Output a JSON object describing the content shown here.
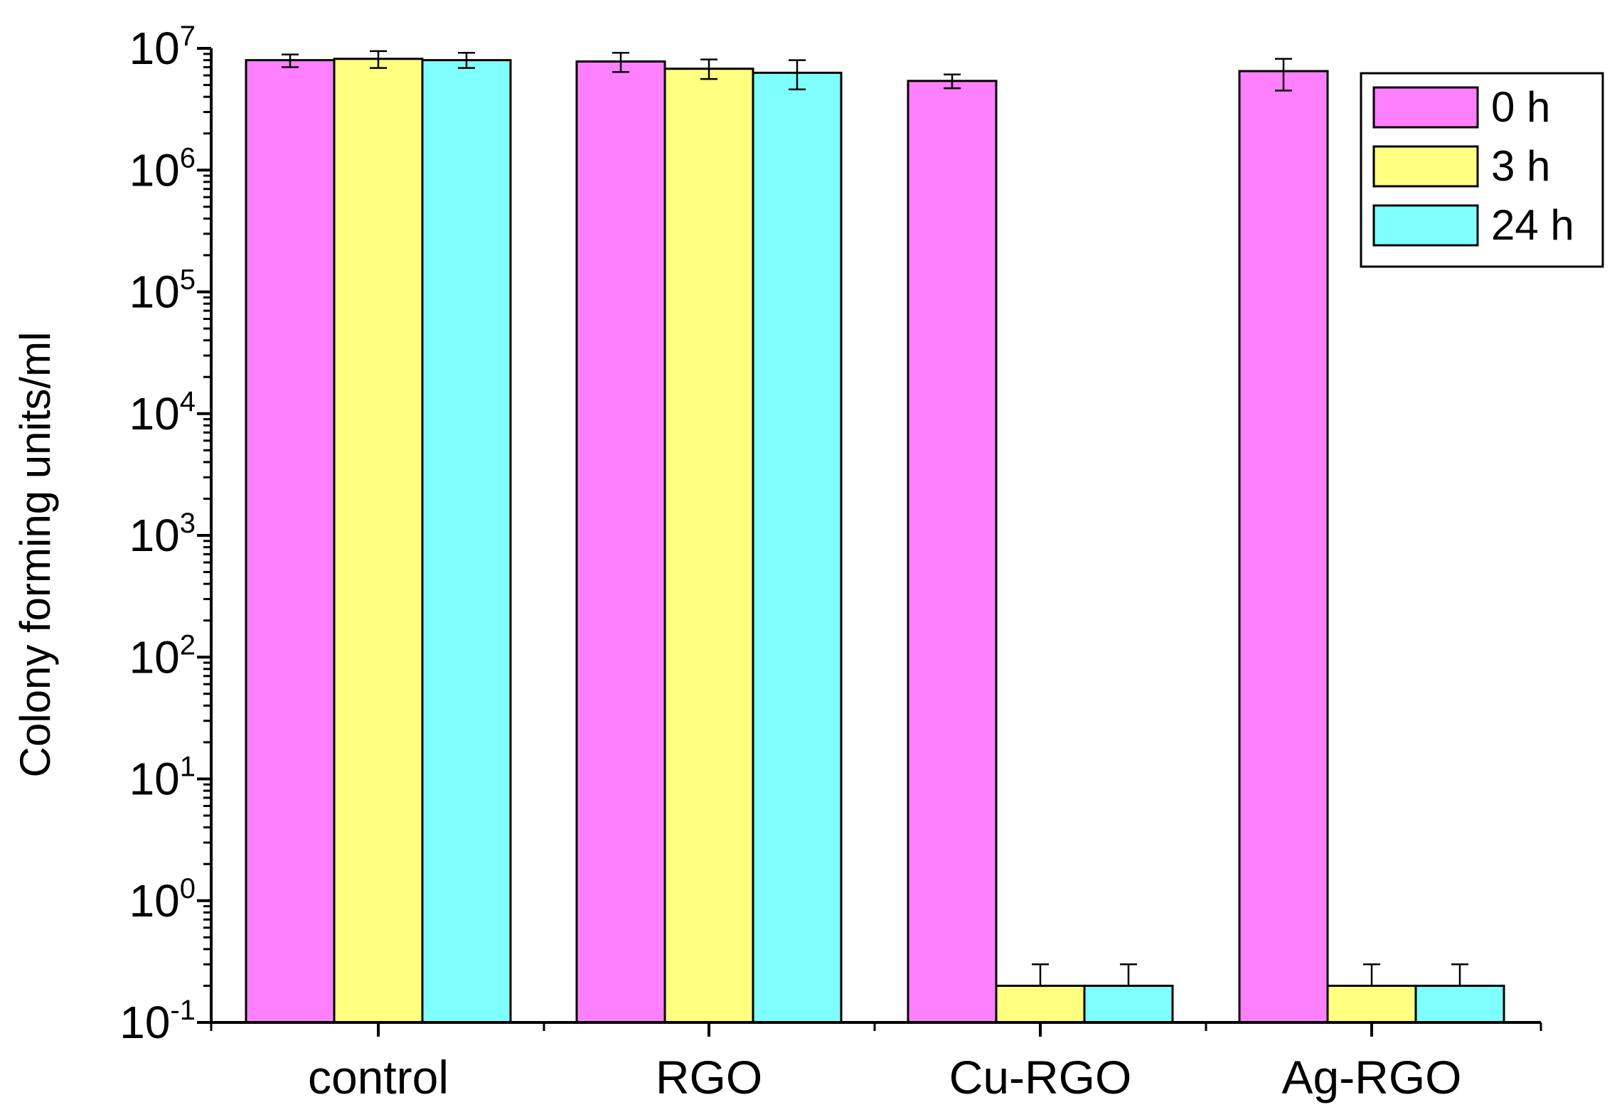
{
  "chart_data": {
    "type": "bar",
    "title": "",
    "xlabel": "",
    "ylabel": "Colony forming units/ml",
    "yscale": "log",
    "ylim": [
      0.1,
      10000000
    ],
    "yticks": [
      {
        "base": "10",
        "exp": "-1",
        "value": 0.1
      },
      {
        "base": "10",
        "exp": "0",
        "value": 1
      },
      {
        "base": "10",
        "exp": "1",
        "value": 10
      },
      {
        "base": "10",
        "exp": "2",
        "value": 100
      },
      {
        "base": "10",
        "exp": "3",
        "value": 1000
      },
      {
        "base": "10",
        "exp": "4",
        "value": 10000
      },
      {
        "base": "10",
        "exp": "5",
        "value": 100000
      },
      {
        "base": "10",
        "exp": "6",
        "value": 1000000
      },
      {
        "base": "10",
        "exp": "7",
        "value": 10000000
      }
    ],
    "categories": [
      "control",
      "RGO",
      "Cu-RGO",
      "Ag-RGO"
    ],
    "series": [
      {
        "name": "0 h",
        "color": "#ff80ff",
        "values": [
          8000000,
          7800000,
          5400000,
          6500000
        ],
        "err_low": [
          7000000,
          6400000,
          4700000,
          4500000
        ],
        "err_high": [
          8900000,
          9200000,
          6100000,
          8200000
        ]
      },
      {
        "name": "3 h",
        "color": "#ffff80",
        "values": [
          8200000,
          6800000,
          0.2,
          0.2
        ],
        "err_low": [
          6900000,
          5600000,
          0.2,
          0.2
        ],
        "err_high": [
          9500000,
          8100000,
          0.3,
          0.3
        ]
      },
      {
        "name": "24 h",
        "color": "#80ffff",
        "values": [
          8000000,
          6300000,
          0.2,
          0.2
        ],
        "err_low": [
          6900000,
          4600000,
          0.2,
          0.2
        ],
        "err_high": [
          9200000,
          8000000,
          0.3,
          0.3
        ]
      }
    ],
    "legend_position": "top-right",
    "grid": false
  }
}
